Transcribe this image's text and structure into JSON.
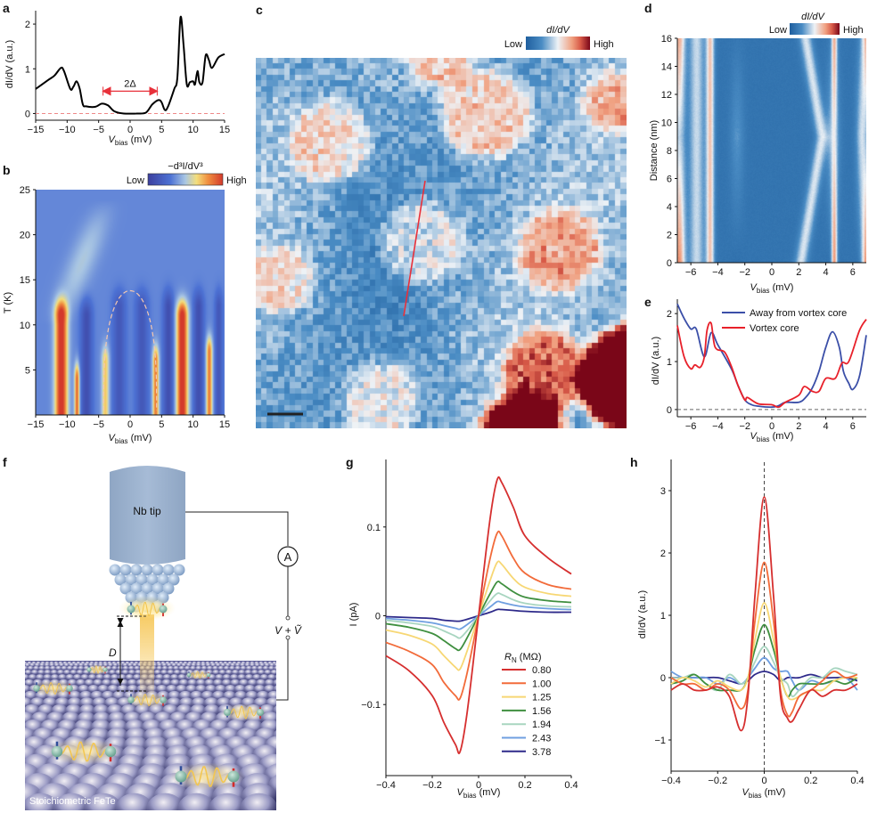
{
  "panel_letters": {
    "a": "a",
    "b": "b",
    "c": "c",
    "d": "d",
    "e": "e",
    "f": "f",
    "g": "g",
    "h": "h"
  },
  "colors": {
    "rn_series": [
      "#d62f2f",
      "#f26b3a",
      "#f7d774",
      "#3f8f3f",
      "#a8d5c0",
      "#6f9fe0",
      "#2e2a8a"
    ],
    "away_from_core": "#3b4fa8",
    "vortex_core": "#e8202a",
    "annotation_red": "#e8303a"
  },
  "chart_data": [
    {
      "panel": "a",
      "type": "line",
      "xlabel": {
        "var": "V",
        "sub": "bias",
        "unit": " (mV)"
      },
      "ylabel": "dI/dV (a.u.)",
      "xlim": [
        -15,
        15
      ],
      "ylim": [
        -0.15,
        2.3
      ],
      "xticks": [
        -15,
        -10,
        -5,
        0,
        5,
        10,
        15
      ],
      "xtick_labels": [
        "−15",
        "−10",
        "−5",
        "0",
        "5",
        "10",
        "15"
      ],
      "yticks": [
        0,
        1,
        2
      ],
      "ytick_labels": [
        "0",
        "1",
        "2"
      ],
      "annotation": {
        "label": "2Δ",
        "from": -4.3,
        "to": 4.3,
        "y": 0.5
      },
      "zero_line": true,
      "series": [
        {
          "x": [
            -15,
            -13,
            -12,
            -11,
            -10.5,
            -9.5,
            -9,
            -8.5,
            -8,
            -7.5,
            -7,
            -5.5,
            -4.5,
            -3.5,
            -2.5,
            -1,
            1,
            2.5,
            3.5,
            4.5,
            5,
            5.5,
            6,
            7,
            7.5,
            8,
            8.5,
            9,
            9.5,
            10,
            10.3,
            10.7,
            11,
            11.5,
            12,
            12.5,
            13,
            14,
            15
          ],
          "y": [
            0.55,
            0.75,
            0.85,
            1.02,
            0.95,
            0.55,
            0.6,
            0.72,
            0.55,
            0.2,
            0.16,
            0.15,
            0.22,
            0.18,
            0.05,
            0.0,
            0.0,
            0.02,
            0.2,
            0.3,
            0.25,
            0.08,
            0.15,
            0.55,
            0.8,
            2.15,
            1.5,
            0.65,
            0.7,
            0.72,
            0.65,
            0.95,
            0.7,
            0.7,
            1.3,
            1.2,
            1.02,
            1.25,
            1.33
          ]
        }
      ]
    },
    {
      "panel": "b",
      "type": "heatmap",
      "xlabel": {
        "var": "V",
        "sub": "bias",
        "unit": " (mV)"
      },
      "ylabel": "T (K)",
      "xlim": [
        -15,
        15
      ],
      "ylim": [
        0,
        25
      ],
      "xticks": [
        -15,
        -10,
        -5,
        0,
        5,
        10,
        15
      ],
      "xtick_labels": [
        "−15",
        "−10",
        "−5",
        "0",
        "5",
        "10",
        "15"
      ],
      "yticks": [
        5,
        10,
        15,
        20,
        25
      ],
      "ytick_labels": [
        "5",
        "10",
        "15",
        "20",
        "25"
      ],
      "colorbar": {
        "title": "−d³I/dV³",
        "low": "Low",
        "high": "High"
      },
      "base_level": 0.35,
      "ridges": [
        {
          "v": -11,
          "w": 1.0,
          "t_top": 11,
          "amp": 0.7
        },
        {
          "v": -8.5,
          "w": 0.4,
          "t_top": 4,
          "amp": 0.55
        },
        {
          "v": -4,
          "w": 0.6,
          "t_top": 6,
          "amp": 0.35
        },
        {
          "v": 4,
          "w": 0.5,
          "t_top": 6,
          "amp": 0.5
        },
        {
          "v": 8.2,
          "w": 0.9,
          "t_top": 11,
          "amp": 0.7
        },
        {
          "v": 12.5,
          "w": 0.5,
          "t_top": 7,
          "amp": 0.5
        },
        {
          "v": -7,
          "w": 0.9,
          "t_top": 11,
          "amp": -0.25
        },
        {
          "v": -1.8,
          "w": 1.0,
          "t_top": 12,
          "amp": -0.2
        },
        {
          "v": 1.8,
          "w": 1.0,
          "t_top": 12,
          "amp": -0.2
        },
        {
          "v": 6,
          "w": 0.8,
          "t_top": 12,
          "amp": -0.25
        },
        {
          "v": 10.8,
          "w": 0.8,
          "t_top": 12,
          "amp": -0.25
        },
        {
          "v": 14,
          "w": 0.6,
          "t_top": 12,
          "amp": -0.2
        }
      ],
      "gap_curve": {
        "delta0_mV": 4.2,
        "Tc_K": 13.8
      }
    },
    {
      "panel": "c",
      "type": "heatmap",
      "colorbar": {
        "title": "dI/dV",
        "low": "Low",
        "high": "High"
      }
    },
    {
      "panel": "d",
      "type": "heatmap",
      "xlabel": {
        "var": "V",
        "sub": "bias",
        "unit": " (mV)"
      },
      "ylabel": "Distance (nm)",
      "xlim": [
        -7,
        7
      ],
      "ylim": [
        0,
        16
      ],
      "xticks": [
        -6,
        -4,
        -2,
        0,
        2,
        4,
        6
      ],
      "xtick_labels": [
        "−6",
        "−4",
        "−2",
        "0",
        "2",
        "4",
        "6"
      ],
      "yticks": [
        0,
        2,
        4,
        6,
        8,
        10,
        12,
        14,
        16
      ],
      "ytick_labels": [
        "0",
        "2",
        "4",
        "6",
        "8",
        "10",
        "12",
        "14",
        "16"
      ],
      "colorbar": {
        "title": "dI/dV",
        "low": "Low",
        "high": "High"
      }
    },
    {
      "panel": "e",
      "type": "line",
      "xlabel": {
        "var": "V",
        "sub": "bias",
        "unit": " (mV)"
      },
      "ylabel": "dI/dV (a.u.)",
      "xlim": [
        -7,
        7
      ],
      "ylim": [
        -0.15,
        2.3
      ],
      "xticks": [
        -6,
        -4,
        -2,
        0,
        2,
        4,
        6
      ],
      "xtick_labels": [
        "−6",
        "−4",
        "−2",
        "0",
        "2",
        "4",
        "6"
      ],
      "yticks": [
        0,
        1,
        2
      ],
      "ytick_labels": [
        "0",
        "1",
        "2"
      ],
      "legend": "top-right",
      "series": [
        {
          "name": "Away from vortex core",
          "x": [
            -7,
            -6.5,
            -6,
            -5.6,
            -5,
            -4.5,
            -4,
            -3,
            -2.5,
            -2,
            -1.5,
            -1,
            0,
            0.5,
            1,
            2,
            2.5,
            3,
            3.5,
            4,
            4.5,
            5,
            5.3,
            5.7,
            6,
            6.5,
            7
          ],
          "y": [
            2.2,
            1.9,
            1.68,
            1.68,
            1.1,
            1.6,
            1.35,
            0.85,
            0.5,
            0.2,
            0.1,
            0.07,
            0.05,
            0.08,
            0.15,
            0.15,
            0.25,
            0.45,
            0.8,
            1.3,
            1.62,
            1.3,
            0.8,
            0.55,
            0.42,
            0.7,
            1.55
          ]
        },
        {
          "name": "Vortex core",
          "x": [
            -7,
            -6.5,
            -6,
            -5.7,
            -5.3,
            -5,
            -4.8,
            -4.5,
            -4.2,
            -3.5,
            -3,
            -2.5,
            -2,
            -1.8,
            -1,
            0,
            0.5,
            1,
            2,
            2.4,
            3,
            3.5,
            4,
            4.7,
            5.2,
            5.7,
            6.5,
            7
          ],
          "y": [
            1.75,
            1.1,
            0.85,
            0.93,
            0.88,
            1.1,
            1.65,
            1.8,
            1.3,
            1.2,
            0.9,
            0.5,
            0.2,
            0.25,
            0.12,
            0.1,
            0.05,
            0.15,
            0.3,
            0.48,
            0.38,
            0.38,
            0.65,
            0.65,
            0.97,
            1.0,
            1.65,
            1.88
          ]
        }
      ]
    },
    {
      "panel": "g",
      "type": "line",
      "xlabel": {
        "var": "V",
        "sub": "bias",
        "unit": " (mV)"
      },
      "ylabel": "I (pA)",
      "xlim": [
        -0.4,
        0.4
      ],
      "ylim": [
        -0.18,
        0.176
      ],
      "xticks": [
        -0.4,
        -0.2,
        0,
        0.2,
        0.4
      ],
      "xtick_labels": [
        "−0.4",
        "−0.2",
        "0",
        "0.2",
        "0.4"
      ],
      "yticks": [
        -0.1,
        0,
        0.1
      ],
      "ytick_labels": [
        "−0.1",
        "0",
        "0.1"
      ],
      "legend_title": {
        "var": "R",
        "sub": "N",
        "unit": " (MΩ)"
      },
      "legend": "bottom-right",
      "x": [
        -0.4,
        -0.3,
        -0.2,
        -0.15,
        -0.1,
        -0.08,
        -0.05,
        0,
        0.05,
        0.08,
        0.1,
        0.15,
        0.2,
        0.3,
        0.4
      ],
      "series": [
        {
          "name": "0.80",
          "values": [
            -0.045,
            -0.062,
            -0.09,
            -0.12,
            -0.145,
            -0.153,
            -0.11,
            0,
            0.11,
            0.153,
            0.15,
            0.122,
            0.09,
            0.065,
            0.047
          ]
        },
        {
          "name": "1.00",
          "values": [
            -0.03,
            -0.04,
            -0.055,
            -0.075,
            -0.09,
            -0.093,
            -0.065,
            0,
            0.065,
            0.093,
            0.09,
            0.065,
            0.048,
            0.035,
            0.03
          ]
        },
        {
          "name": "1.25",
          "values": [
            -0.016,
            -0.022,
            -0.032,
            -0.045,
            -0.058,
            -0.06,
            -0.04,
            0,
            0.04,
            0.06,
            0.058,
            0.042,
            0.032,
            0.025,
            0.022
          ]
        },
        {
          "name": "1.56",
          "values": [
            -0.009,
            -0.013,
            -0.02,
            -0.028,
            -0.037,
            -0.038,
            -0.025,
            0,
            0.025,
            0.038,
            0.036,
            0.027,
            0.021,
            0.017,
            0.015
          ]
        },
        {
          "name": "1.94",
          "values": [
            -0.005,
            -0.008,
            -0.012,
            -0.017,
            -0.023,
            -0.025,
            -0.017,
            0,
            0.017,
            0.025,
            0.024,
            0.018,
            0.014,
            0.011,
            0.01
          ]
        },
        {
          "name": "2.43",
          "values": [
            -0.003,
            -0.005,
            -0.008,
            -0.011,
            -0.014,
            -0.015,
            -0.01,
            0,
            0.01,
            0.016,
            0.015,
            0.012,
            0.01,
            0.008,
            0.007
          ]
        },
        {
          "name": "3.78",
          "values": [
            -0.001,
            -0.002,
            -0.003,
            -0.005,
            -0.006,
            -0.006,
            -0.004,
            0,
            0.004,
            0.007,
            0.007,
            0.006,
            0.005,
            0.004,
            0.004
          ]
        }
      ]
    },
    {
      "panel": "h",
      "type": "line",
      "xlabel": {
        "var": "V",
        "sub": "bias",
        "unit": " (mV)"
      },
      "ylabel": "dI/dV (a.u.)",
      "xlim": [
        -0.4,
        0.4
      ],
      "ylim": [
        -1.5,
        3.5
      ],
      "xticks": [
        -0.4,
        -0.2,
        0,
        0.2,
        0.4
      ],
      "xtick_labels": [
        "−0.4",
        "−0.2",
        "0",
        "0.2",
        "0.4"
      ],
      "yticks": [
        -1,
        0,
        1,
        2,
        3
      ],
      "ytick_labels": [
        "−1",
        "0",
        "1",
        "2",
        "3"
      ],
      "zero_vline": true,
      "x": [
        -0.4,
        -0.35,
        -0.3,
        -0.25,
        -0.2,
        -0.15,
        -0.1,
        -0.07,
        -0.04,
        0,
        0.04,
        0.07,
        0.1,
        0.12,
        0.15,
        0.2,
        0.25,
        0.3,
        0.35,
        0.4
      ],
      "series": [
        {
          "values": [
            -0.2,
            -0.1,
            -0.2,
            -0.2,
            -0.15,
            -0.3,
            -0.85,
            -0.3,
            1.3,
            2.9,
            1.3,
            -0.3,
            -0.65,
            -0.7,
            -0.5,
            -0.2,
            -0.3,
            -0.2,
            -0.2,
            -0.1
          ]
        },
        {
          "values": [
            0,
            -0.1,
            -0.1,
            -0.2,
            -0.1,
            -0.2,
            -0.5,
            -0.2,
            0.9,
            1.85,
            0.9,
            -0.2,
            -0.6,
            -0.55,
            -0.3,
            -0.2,
            -0.05,
            0.1,
            0,
            0.05
          ]
        },
        {
          "values": [
            -0.1,
            0,
            -0.05,
            -0.15,
            -0.05,
            -0.15,
            -0.2,
            0,
            0.6,
            1.2,
            0.6,
            0,
            -0.3,
            -0.35,
            -0.3,
            -0.2,
            -0.2,
            -0.05,
            0,
            0
          ]
        },
        {
          "values": [
            -0.1,
            -0.05,
            0.05,
            -0.1,
            -0.2,
            -0.2,
            -0.2,
            0,
            0.45,
            0.85,
            0.45,
            0,
            -0.3,
            -0.2,
            -0.1,
            -0.1,
            -0.1,
            -0.05,
            -0.1,
            0
          ]
        },
        {
          "values": [
            0,
            0,
            0.05,
            -0.1,
            -0.2,
            0.05,
            -0.1,
            0,
            0.25,
            0.5,
            0.25,
            0,
            -0.1,
            -0.3,
            -0.2,
            0,
            0,
            0.15,
            0.1,
            0.05
          ]
        },
        {
          "values": [
            0.1,
            0,
            0,
            0,
            -0.1,
            0,
            -0.1,
            0,
            0.15,
            0.32,
            0.15,
            0.1,
            0.1,
            -0.05,
            -0.2,
            -0.05,
            -0.1,
            -0.05,
            0,
            -0.2
          ]
        },
        {
          "values": [
            0,
            0,
            0,
            0,
            0,
            -0.05,
            -0.1,
            -0.05,
            0.05,
            0.1,
            0.05,
            -0.05,
            0,
            0,
            0,
            0.05,
            0,
            0,
            0,
            -0.05
          ]
        }
      ]
    }
  ],
  "illustration": {
    "tip_label": "Nb tip",
    "ammeter_label": "A",
    "voltage_label": "V + Ṽ",
    "distance_label": "D",
    "sample_label": "Stoichiometric FeTe"
  }
}
